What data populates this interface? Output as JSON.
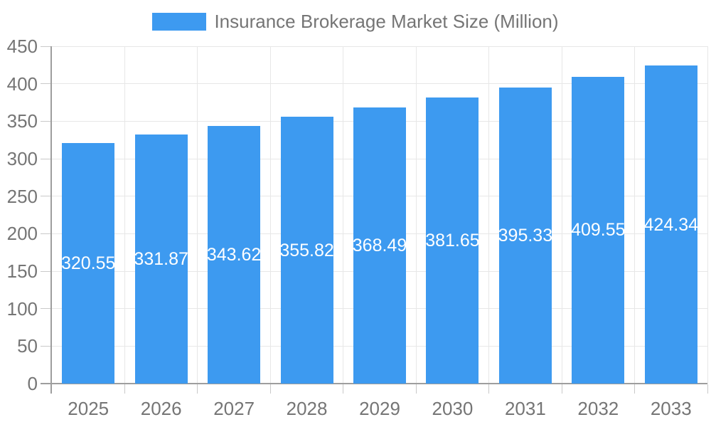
{
  "chart_data": {
    "type": "bar",
    "title": "Insurance Brokerage Market Size (Million)",
    "categories": [
      "2025",
      "2026",
      "2027",
      "2028",
      "2029",
      "2030",
      "2031",
      "2032",
      "2033"
    ],
    "values": [
      320.55,
      331.87,
      343.62,
      355.82,
      368.49,
      381.65,
      395.33,
      409.55,
      424.34
    ],
    "value_labels": [
      "320.55",
      "331.87",
      "343.62",
      "355.82",
      "368.49",
      "381.65",
      "395.33",
      "409.55",
      "424.34"
    ],
    "ylim": [
      0,
      450
    ],
    "ytick_step": 50,
    "ytick_labels": [
      "0",
      "50",
      "100",
      "150",
      "200",
      "250",
      "300",
      "350",
      "400",
      "450"
    ],
    "xlabel": "",
    "ylabel": "",
    "grid": true,
    "legend_position": "top",
    "colors": {
      "bar": "#3D9AF0",
      "bar_label_text": "#FFFFFF",
      "axis_text": "#757575",
      "grid_line": "#E7E7E7",
      "tick_line": "#C9C9C9",
      "axis_line": "#9E9E9E",
      "background": "#FFFFFF"
    }
  }
}
